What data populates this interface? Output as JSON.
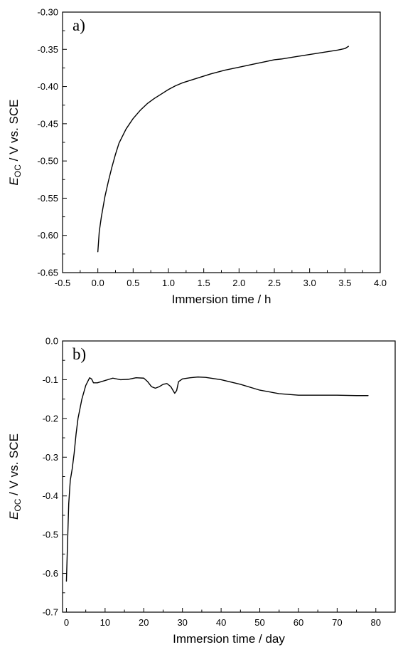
{
  "chart_data": [
    {
      "type": "line",
      "panel_label": "a)",
      "xlabel": "Immersion time / h",
      "ylabel": {
        "symbol": "E",
        "subscript": "OC",
        "rest": " / V vs. SCE"
      },
      "xlim": [
        -0.5,
        4.0
      ],
      "ylim": [
        -0.65,
        -0.3
      ],
      "xticks": [
        -0.5,
        0.0,
        0.5,
        1.0,
        1.5,
        2.0,
        2.5,
        3.0,
        3.5,
        4.0
      ],
      "xtick_labels": [
        "-0.5",
        "0.0",
        "0.5",
        "1.0",
        "1.5",
        "2.0",
        "2.5",
        "3.0",
        "3.5",
        "4.0"
      ],
      "yticks": [
        -0.65,
        -0.6,
        -0.55,
        -0.5,
        -0.45,
        -0.4,
        -0.35,
        -0.3
      ],
      "ytick_labels": [
        "-0.65",
        "-0.60",
        "-0.55",
        "-0.50",
        "-0.45",
        "-0.40",
        "-0.35",
        "-0.30"
      ],
      "grid": false,
      "line_color": "#000000",
      "series": [
        {
          "x": [
            0.0,
            0.02,
            0.05,
            0.1,
            0.15,
            0.2,
            0.25,
            0.3,
            0.4,
            0.5,
            0.6,
            0.7,
            0.8,
            0.9,
            1.0,
            1.1,
            1.2,
            1.4,
            1.6,
            1.8,
            2.0,
            2.2,
            2.4,
            2.5,
            2.6,
            2.8,
            3.0,
            3.2,
            3.4,
            3.5,
            3.55
          ],
          "y": [
            -0.622,
            -0.595,
            -0.575,
            -0.548,
            -0.527,
            -0.508,
            -0.491,
            -0.476,
            -0.457,
            -0.443,
            -0.432,
            -0.423,
            -0.416,
            -0.41,
            -0.404,
            -0.399,
            -0.395,
            -0.389,
            -0.383,
            -0.378,
            -0.374,
            -0.37,
            -0.366,
            -0.364,
            -0.363,
            -0.36,
            -0.357,
            -0.354,
            -0.351,
            -0.349,
            -0.346
          ]
        }
      ]
    },
    {
      "type": "line",
      "panel_label": "b)",
      "xlabel": "Immersion time / day",
      "ylabel": {
        "symbol": "E",
        "subscript": "OC",
        "rest": " / V vs. SCE"
      },
      "xlim": [
        -1,
        85
      ],
      "ylim": [
        -0.7,
        0.0
      ],
      "xticks": [
        0,
        10,
        20,
        30,
        40,
        50,
        60,
        70,
        80
      ],
      "xtick_labels": [
        "0",
        "10",
        "20",
        "30",
        "40",
        "50",
        "60",
        "70",
        "80"
      ],
      "yticks": [
        -0.7,
        -0.6,
        -0.5,
        -0.4,
        -0.3,
        -0.2,
        -0.1,
        0.0
      ],
      "ytick_labels": [
        "-0.7",
        "-0.6",
        "-0.5",
        "-0.4",
        "-0.3",
        "-0.2",
        "-0.1",
        "0.0"
      ],
      "grid": false,
      "line_color": "#000000",
      "series": [
        {
          "x": [
            0.0,
            0.3,
            0.6,
            1.0,
            1.5,
            2.0,
            2.5,
            3.0,
            4.0,
            5.0,
            6.0,
            6.5,
            7.0,
            8.0,
            10.0,
            12.0,
            14.0,
            16.0,
            18.0,
            20.0,
            21.0,
            22.0,
            23.0,
            24.0,
            25.0,
            26.0,
            27.0,
            28.0,
            28.5,
            29.0,
            30.0,
            32.0,
            34.0,
            36.0,
            40.0,
            45.0,
            50.0,
            55.0,
            60.0,
            65.0,
            70.0,
            75.0,
            78.0
          ],
          "y": [
            -0.62,
            -0.52,
            -0.42,
            -0.36,
            -0.33,
            -0.29,
            -0.24,
            -0.2,
            -0.15,
            -0.115,
            -0.095,
            -0.098,
            -0.108,
            -0.108,
            -0.102,
            -0.096,
            -0.1,
            -0.099,
            -0.095,
            -0.096,
            -0.105,
            -0.118,
            -0.122,
            -0.118,
            -0.112,
            -0.11,
            -0.118,
            -0.135,
            -0.128,
            -0.105,
            -0.098,
            -0.095,
            -0.093,
            -0.094,
            -0.1,
            -0.112,
            -0.127,
            -0.136,
            -0.14,
            -0.14,
            -0.14,
            -0.141,
            -0.141
          ]
        }
      ]
    }
  ]
}
